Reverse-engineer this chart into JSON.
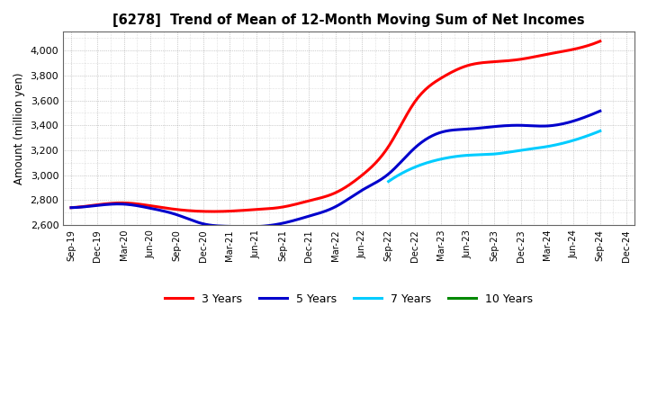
{
  "title": "[6278]  Trend of Mean of 12-Month Moving Sum of Net Incomes",
  "ylabel": "Amount (million yen)",
  "background_color": "#ffffff",
  "grid_color": "#999999",
  "ylim": [
    2600,
    4150
  ],
  "yticks": [
    2600,
    2800,
    3000,
    3200,
    3400,
    3600,
    3800,
    4000
  ],
  "x_labels": [
    "Sep-19",
    "Dec-19",
    "Mar-20",
    "Jun-20",
    "Sep-20",
    "Dec-20",
    "Mar-21",
    "Jun-21",
    "Sep-21",
    "Dec-21",
    "Mar-22",
    "Jun-22",
    "Sep-22",
    "Dec-22",
    "Mar-23",
    "Jun-23",
    "Sep-23",
    "Dec-23",
    "Mar-24",
    "Jun-24",
    "Sep-24",
    "Dec-24"
  ],
  "series": {
    "3 Years": {
      "color": "#ff0000",
      "data_x": [
        0,
        1,
        2,
        3,
        4,
        5,
        6,
        7,
        8,
        9,
        10,
        11,
        12,
        13,
        14,
        15,
        16,
        17,
        18,
        19,
        20
      ],
      "data_y": [
        2740,
        2763,
        2778,
        2755,
        2725,
        2710,
        2712,
        2725,
        2745,
        2795,
        2860,
        3000,
        3230,
        3590,
        3780,
        3880,
        3910,
        3930,
        3970,
        4010,
        4075
      ]
    },
    "5 Years": {
      "color": "#0000cc",
      "data_x": [
        0,
        1,
        2,
        3,
        4,
        5,
        6,
        7,
        8,
        9,
        10,
        11,
        12,
        13,
        14,
        15,
        16,
        17,
        18,
        19,
        20
      ],
      "data_y": [
        2740,
        2758,
        2768,
        2735,
        2683,
        2610,
        2590,
        2588,
        2615,
        2672,
        2748,
        2880,
        3010,
        3220,
        3345,
        3370,
        3390,
        3400,
        3395,
        3435,
        3515
      ]
    },
    "7 Years": {
      "color": "#00ccff",
      "data_x": [
        12,
        13,
        14,
        15,
        16,
        17,
        18,
        19,
        20
      ],
      "data_y": [
        2950,
        3065,
        3130,
        3160,
        3170,
        3200,
        3230,
        3280,
        3355
      ]
    },
    "10 Years": {
      "color": "#008800",
      "data_x": [],
      "data_y": []
    }
  },
  "legend": {
    "labels": [
      "3 Years",
      "5 Years",
      "7 Years",
      "10 Years"
    ],
    "colors": [
      "#ff0000",
      "#0000cc",
      "#00ccff",
      "#008800"
    ]
  }
}
